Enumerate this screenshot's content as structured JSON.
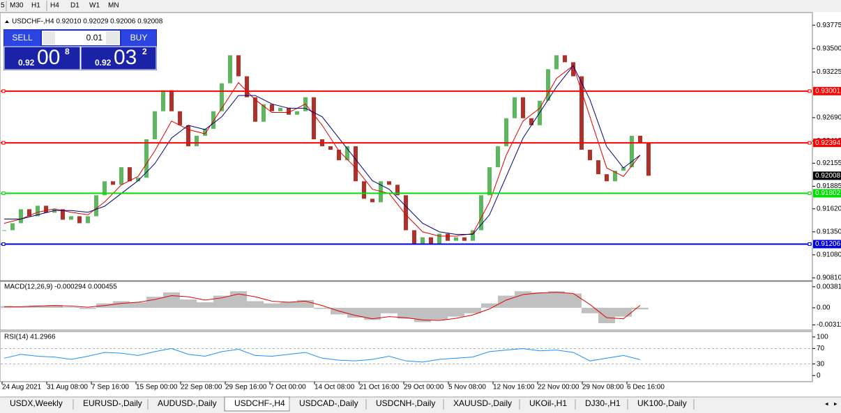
{
  "toolbar": [
    "5",
    "M30",
    "H1",
    "H4",
    "D1",
    "W1",
    "MN"
  ],
  "trade_panel": {
    "sell": "SELL",
    "lot": "0.01",
    "buy": "BUY",
    "sell_price": [
      "0.92",
      "00",
      "8"
    ],
    "buy_price": [
      "0.92",
      "03",
      "2"
    ]
  },
  "tabs": [
    "USDX,Weekly",
    "EURUSD-,Daily",
    "AUDUSD-,Daily",
    "USDCHF-,H4",
    "USDCAD-,Daily",
    "USDCNH-,Daily",
    "XAUUSD-,Daily",
    "UKOil-,H1",
    "DJ30-,H1",
    "UK100-,Daily"
  ],
  "active_tab": "USDCHF-,H4",
  "chart_data": {
    "type": "candlestick",
    "title": "USDCHF-,H4  0.92010 0.92029 0.92006 0.92008",
    "close": [
      0.91369,
      0.91451,
      0.91615,
      0.91533,
      0.91656,
      0.91574,
      0.91615,
      0.91492,
      0.91533,
      0.91451,
      0.91533,
      0.91779,
      0.91943,
      0.91902,
      0.92108,
      0.91943,
      0.91985,
      0.92436,
      0.92765,
      0.93011,
      0.92765,
      0.92601,
      0.92354,
      0.92477,
      0.92559,
      0.92765,
      0.93093,
      0.93422,
      0.93175,
      0.92929,
      0.92642,
      0.92847,
      0.92765,
      0.92806,
      0.92724,
      0.92765,
      0.92929,
      0.92436,
      0.92354,
      0.92313,
      0.9219,
      0.92354,
      0.91943,
      0.91738,
      0.91697,
      0.91943,
      0.91902,
      0.91779,
      0.91369,
      0.91204,
      0.91286,
      0.91204,
      0.91328,
      0.91245,
      0.91286,
      0.91245,
      0.91369,
      0.91779,
      0.92108,
      0.92354,
      0.92683,
      0.92929,
      0.92683,
      0.92601,
      0.92888,
      0.93258,
      0.93422,
      0.9334,
      0.93175,
      0.92313,
      0.9219,
      0.92026,
      0.91943,
      0.92067,
      0.92108,
      0.92477,
      0.92395,
      0.92008
    ],
    "up_color": "#5cb85c",
    "down_color": "#b0302a",
    "series": [
      {
        "color": "#e00000",
        "values": [
          0.9145,
          0.915,
          0.9158,
          0.9162,
          0.9158,
          0.9155,
          0.917,
          0.919,
          0.92,
          0.923,
          0.9265,
          0.9255,
          0.925,
          0.928,
          0.931,
          0.929,
          0.9275,
          0.9275,
          0.9285,
          0.926,
          0.923,
          0.921,
          0.9185,
          0.918,
          0.9155,
          0.9135,
          0.913,
          0.913,
          0.9133,
          0.917,
          0.9225,
          0.9265,
          0.928,
          0.9315,
          0.933,
          0.927,
          0.921,
          0.92,
          0.9225
        ]
      },
      {
        "color": "#000080",
        "values": [
          0.915,
          0.915,
          0.9155,
          0.916,
          0.916,
          0.9158,
          0.9165,
          0.918,
          0.9195,
          0.9215,
          0.9245,
          0.926,
          0.9255,
          0.927,
          0.9295,
          0.9295,
          0.9285,
          0.928,
          0.928,
          0.927,
          0.9245,
          0.922,
          0.9195,
          0.9185,
          0.9165,
          0.9145,
          0.9135,
          0.9132,
          0.9132,
          0.9155,
          0.92,
          0.9245,
          0.9275,
          0.9305,
          0.933,
          0.929,
          0.9235,
          0.921,
          0.9225
        ]
      }
    ],
    "levels": [
      {
        "value": 0.93001,
        "color": "#ff0000"
      },
      {
        "value": 0.92394,
        "color": "#ff0000"
      },
      {
        "value": 0.91802,
        "color": "#00e000"
      },
      {
        "value": 0.91206,
        "color": "#0000dd"
      }
    ],
    "last_price": 0.92008,
    "ylim": [
      0.90785,
      0.93915
    ],
    "yticks": [
      0.93775,
      {
        "value": 0.935,
        "label": "0.93500"
      },
      0.93225,
      {
        "value": 0.9269,
        "label": "0.92690"
      },
      0.92415,
      0.92155,
      0.91885,
      {
        "value": 0.9162,
        "label": "0.91620"
      },
      {
        "value": 0.9135,
        "label": "0.91350"
      },
      {
        "value": 0.9108,
        "label": "0.91080"
      },
      {
        "value": 0.9081,
        "label": "0.90810"
      }
    ],
    "x_labels": [
      "24 Aug 2021",
      "31 Aug 08:00",
      "7 Sep 16:00",
      "15 Sep 00:00",
      "22 Sep 08:00",
      "29 Sep 16:00",
      "7 Oct 00:00",
      "14 Oct 08:00",
      "21 Oct 16:00",
      "29 Oct 00:00",
      "5 Nov 08:00",
      "12 Nov 16:00",
      "22 Nov 00:00",
      "29 Nov 08:00",
      "6 Dec 16:00"
    ],
    "macd": {
      "title": "MACD(12,26,9) -0.000294 0.000455",
      "hist_color": "#c0c0c0",
      "signal_color": "#e00000",
      "hist": [
        0.0003,
        0.0002,
        0.0004,
        0.0005,
        0.0001,
        -0.0002,
        0.0008,
        0.0012,
        0.001,
        0.002,
        0.0028,
        0.0015,
        0.001,
        0.0022,
        0.003,
        0.0012,
        0.0008,
        0.001,
        0.0014,
        -0.0002,
        -0.0012,
        -0.0018,
        -0.0022,
        -0.001,
        -0.002,
        -0.0026,
        -0.0022,
        -0.0016,
        -0.001,
        0.0008,
        0.0022,
        0.003,
        0.0028,
        0.003,
        0.0026,
        -0.001,
        -0.0028,
        -0.0016,
        -0.000294
      ],
      "signal": [
        0.0002,
        0.0002,
        0.0003,
        0.0004,
        0.0003,
        0.0001,
        0.0004,
        0.0008,
        0.001,
        0.0015,
        0.0022,
        0.002,
        0.0014,
        0.0018,
        0.0025,
        0.002,
        0.0012,
        0.001,
        0.0012,
        0.0004,
        -0.0006,
        -0.0014,
        -0.002,
        -0.0016,
        -0.0018,
        -0.0022,
        -0.0023,
        -0.0019,
        -0.0013,
        -0.0002,
        0.0014,
        0.0024,
        0.0027,
        0.0028,
        0.0026,
        0.0006,
        -0.0018,
        -0.002,
        0.000455
      ],
      "ylim": [
        -0.00393,
        0.00467
      ],
      "yticks": [
        0.003811,
        {
          "value": 0,
          "label": "0.00"
        },
        {
          "value": -0.003115,
          "label": "-0.003115"
        }
      ]
    },
    "rsi": {
      "title": "RSI(14) 41.2966",
      "color": "#1e90ff",
      "values": [
        45,
        55,
        50,
        48,
        42,
        50,
        60,
        58,
        52,
        62,
        70,
        55,
        50,
        62,
        68,
        52,
        50,
        55,
        60,
        45,
        40,
        38,
        42,
        50,
        38,
        35,
        42,
        45,
        48,
        62,
        66,
        70,
        64,
        66,
        60,
        38,
        45,
        52,
        41.2966
      ],
      "ylim": [
        -14,
        112.3
      ],
      "yticks": [
        100,
        70,
        30,
        0
      ],
      "levels": [
        70,
        30
      ]
    }
  }
}
